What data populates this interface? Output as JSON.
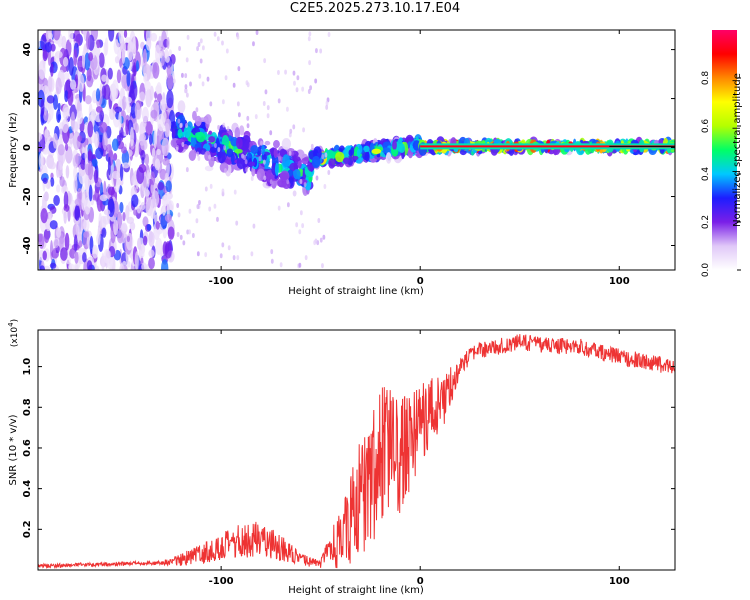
{
  "figure_title": "C2E5.2025.273.10.17.E04",
  "chart_data": [
    {
      "type": "heatmap",
      "title": "C2E5.2025.273.10.17.E04",
      "xlabel": "Height of straight line (km)",
      "ylabel": "Frequency (Hz)",
      "xlim": [
        -192,
        128
      ],
      "ylim": [
        -50,
        48
      ],
      "xticks": [
        -100,
        0,
        100
      ],
      "yticks": [
        -40,
        -20,
        0,
        20,
        40
      ],
      "colorbar": {
        "label": "Normalized spectral amplitude",
        "range": [
          0.0,
          1.0
        ],
        "ticks": [
          0.0,
          0.2,
          0.4,
          0.6,
          0.8
        ],
        "colors": [
          "#ffffff",
          "#e0c8f8",
          "#7a1fe8",
          "#1d1dff",
          "#00c8ff",
          "#00ff66",
          "#b4ff00",
          "#ffff00",
          "#ff8800",
          "#ff0000",
          "#ff0066"
        ]
      },
      "regions": [
        {
          "name": "noise",
          "x_range": [
            -192,
            -124
          ],
          "freq_spread_hz": 48,
          "peak_amplitude": 0.3
        },
        {
          "name": "broadened carrier",
          "x_range": [
            -124,
            -55
          ],
          "center_freq_hz": [
            8,
            -12
          ],
          "freq_spread_hz": 12,
          "peak_amplitude": 0.5
        },
        {
          "name": "converging carrier",
          "x_range": [
            -55,
            0
          ],
          "center_freq_hz": [
            -5,
            1
          ],
          "freq_spread_hz": 4,
          "peak_amplitude": 0.7
        },
        {
          "name": "stable carrier",
          "x_range": [
            0,
            128
          ],
          "center_freq_hz": [
            0.5,
            0.5
          ],
          "freq_spread_hz": 2,
          "peak_amplitude": 0.95
        }
      ]
    },
    {
      "type": "line",
      "title": "",
      "xlabel": "Height of straight line (km)",
      "ylabel": "SNR (10 * v/v)",
      "y_multiplier": "(x10",
      "y_multiplier_exp": "4",
      "y_multiplier_close": ")",
      "xlim": [
        -192,
        128
      ],
      "ylim": [
        0,
        1.18
      ],
      "xticks": [
        -100,
        0,
        100
      ],
      "yticks": [
        0.2,
        0.4,
        0.6,
        0.8,
        1.0
      ],
      "ytick_labels": [
        "0.2",
        "0.4",
        "0.6",
        "0.8",
        "1.0"
      ],
      "series": [
        {
          "name": "SNR",
          "color": "#ee3333",
          "x": [
            -192,
            -150,
            -130,
            -120,
            -110,
            -100,
            -90,
            -80,
            -70,
            -60,
            -50,
            -45,
            -40,
            -35,
            -30,
            -25,
            -20,
            -15,
            -10,
            -5,
            0,
            5,
            10,
            15,
            20,
            25,
            30,
            40,
            50,
            60,
            70,
            80,
            90,
            100,
            110,
            120,
            128
          ],
          "values": [
            0.02,
            0.03,
            0.035,
            0.05,
            0.08,
            0.11,
            0.14,
            0.16,
            0.11,
            0.05,
            0.03,
            0.1,
            0.15,
            0.25,
            0.35,
            0.45,
            0.55,
            0.6,
            0.55,
            0.65,
            0.72,
            0.78,
            0.8,
            0.9,
            1.0,
            1.05,
            1.08,
            1.1,
            1.12,
            1.11,
            1.1,
            1.1,
            1.07,
            1.05,
            1.03,
            1.01,
            1.0
          ],
          "noise_amplitude": [
            0.01,
            0.01,
            0.01,
            0.03,
            0.05,
            0.07,
            0.09,
            0.09,
            0.07,
            0.03,
            0.02,
            0.1,
            0.14,
            0.22,
            0.3,
            0.33,
            0.35,
            0.3,
            0.28,
            0.25,
            0.22,
            0.18,
            0.15,
            0.1,
            0.05,
            0.04,
            0.04,
            0.04,
            0.04,
            0.04,
            0.04,
            0.04,
            0.04,
            0.04,
            0.04,
            0.04,
            0.04
          ]
        }
      ]
    }
  ]
}
